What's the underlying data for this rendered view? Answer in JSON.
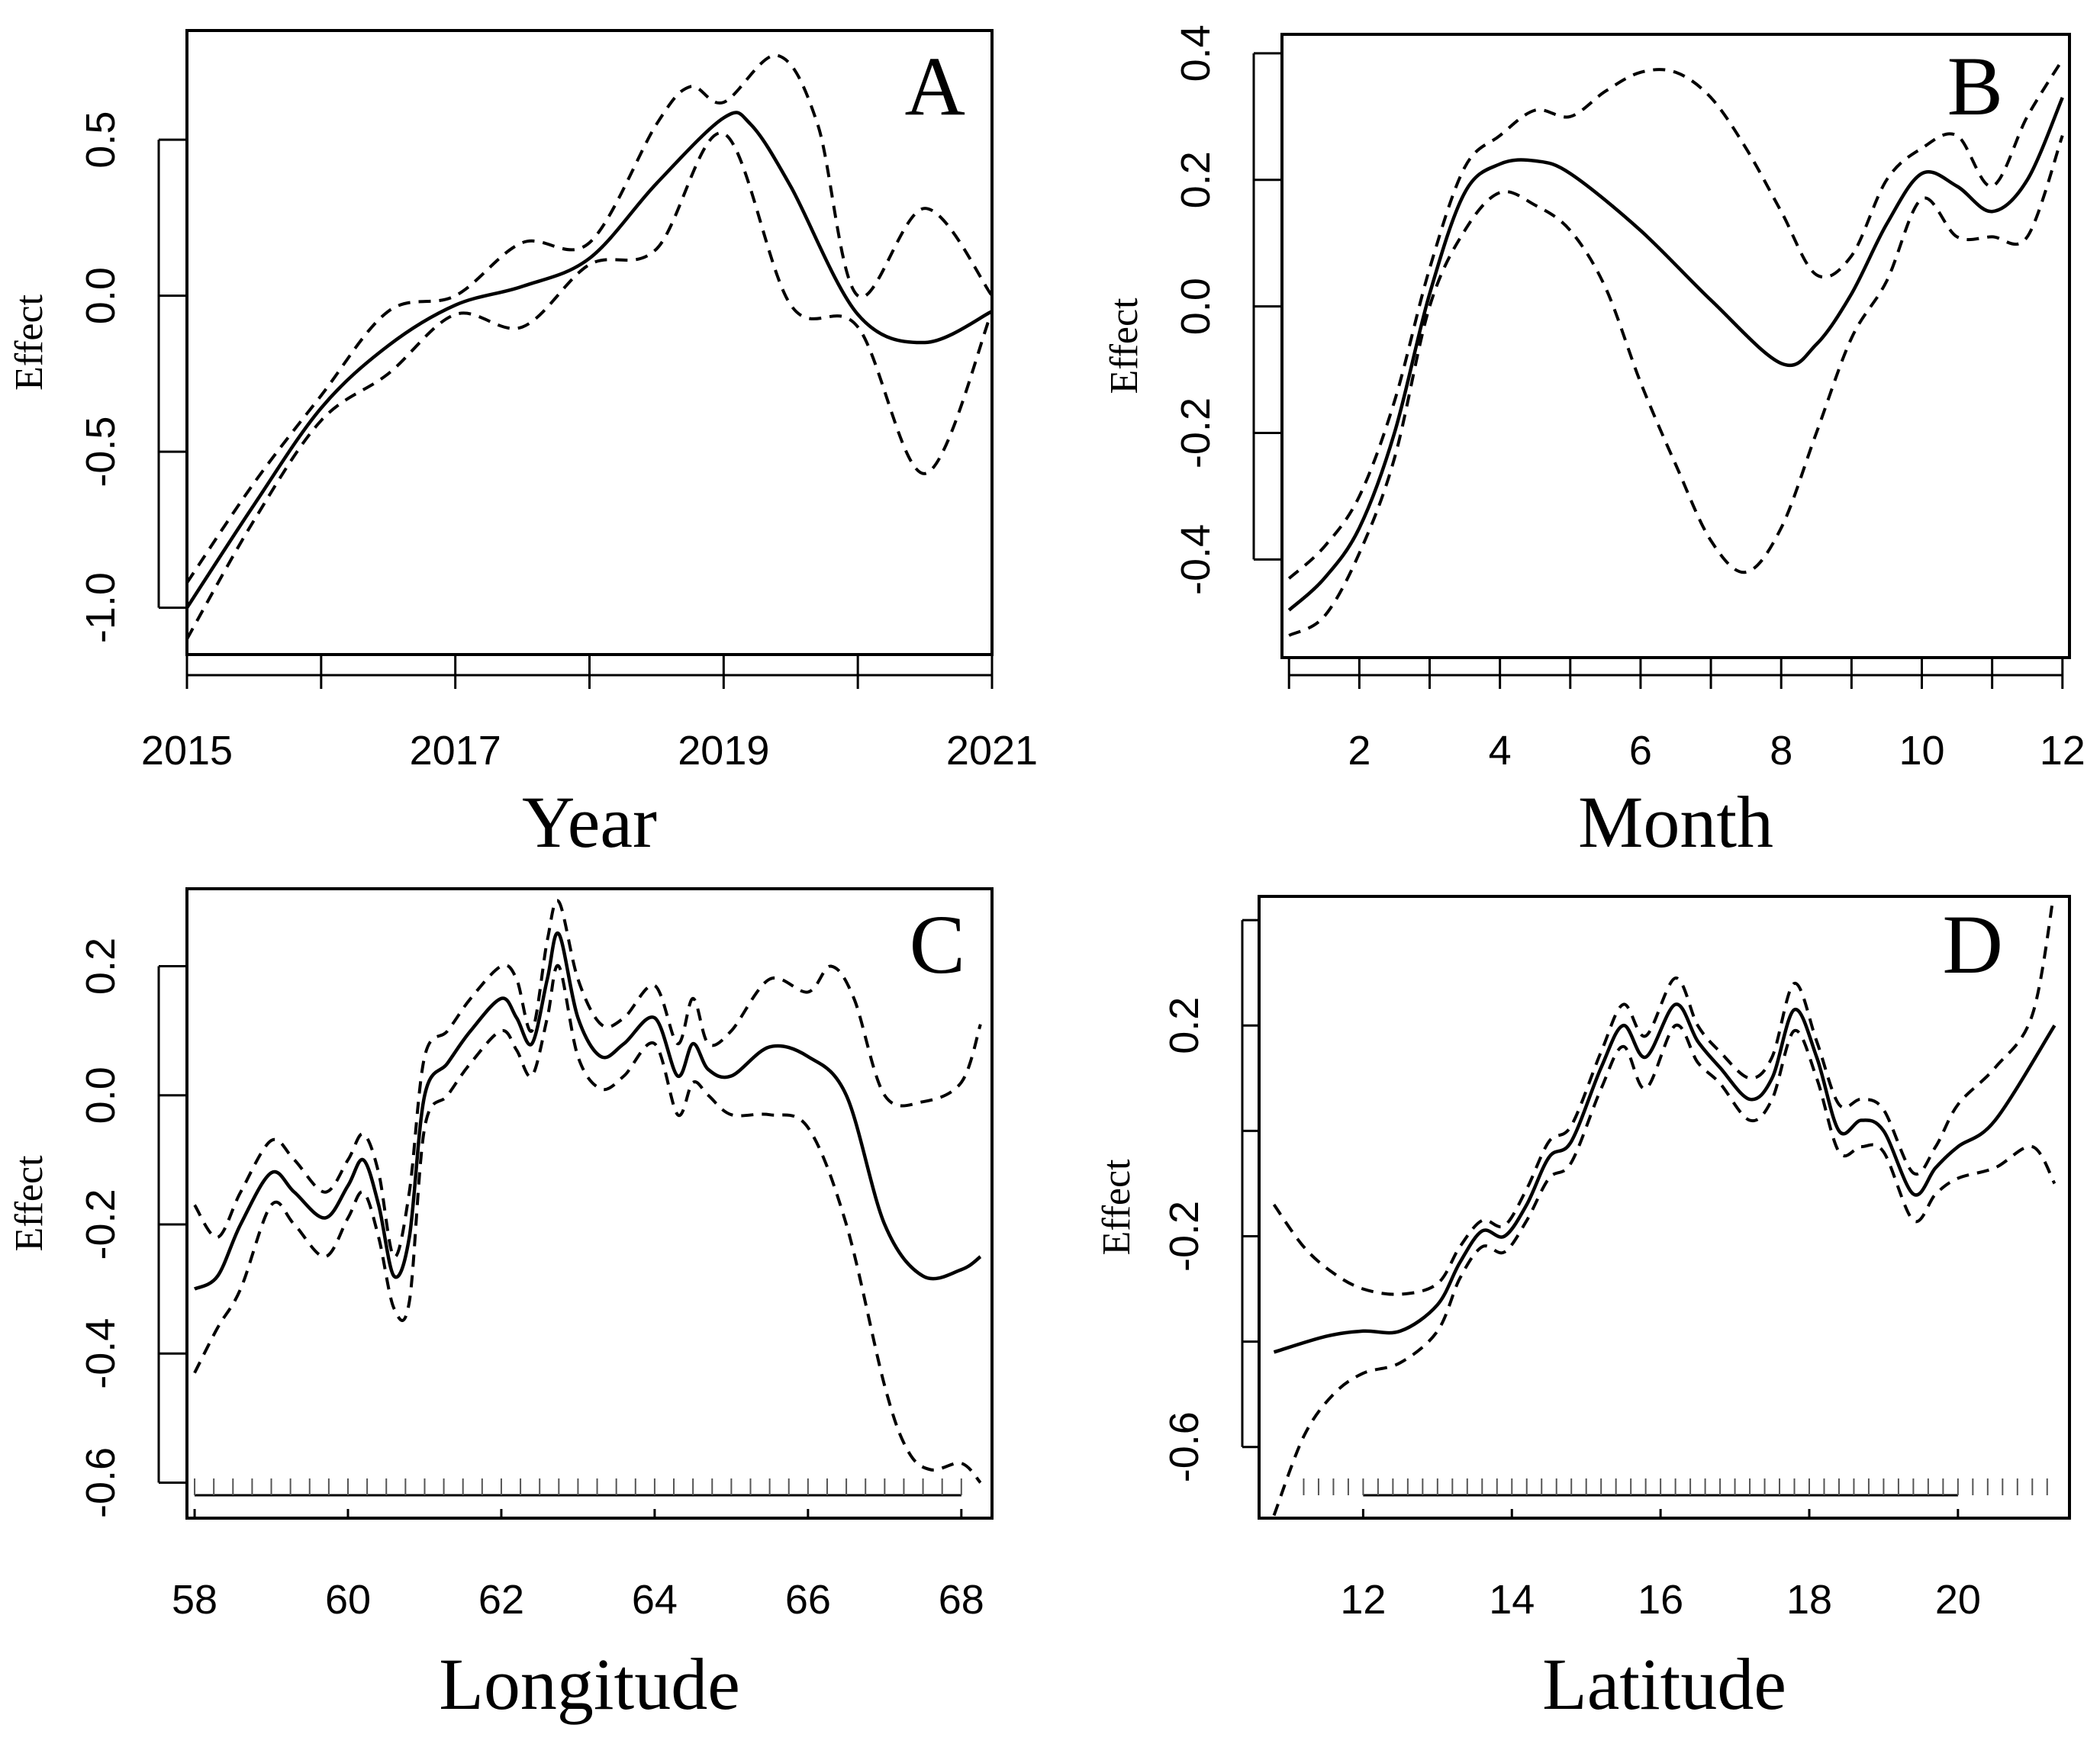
{
  "chart_data": [
    {
      "type": "line",
      "panel_label": "A",
      "xlabel": "Year",
      "ylabel": "Effect",
      "xlim": [
        2015,
        2021
      ],
      "ylim": [
        -1.15,
        0.85
      ],
      "xticks": [
        2015,
        2016,
        2017,
        2018,
        2019,
        2020,
        2021
      ],
      "xtick_labels": [
        "2015",
        "",
        "2017",
        "",
        "2019",
        "",
        "2021"
      ],
      "yticks": [
        -1.0,
        -0.5,
        0.0,
        0.5
      ],
      "ytick_labels": [
        "-1.0",
        "-0.5",
        "0.0",
        "0.5"
      ],
      "rug": [],
      "series": [
        {
          "role": "fit",
          "x": [
            2015,
            2015.5,
            2016,
            2016.5,
            2017,
            2017.5,
            2018,
            2018.5,
            2019,
            2019.2,
            2019.5,
            2020,
            2020.5,
            2021
          ],
          "y": [
            -1.0,
            -0.67,
            -0.36,
            -0.16,
            -0.03,
            0.03,
            0.12,
            0.36,
            0.57,
            0.55,
            0.35,
            -0.06,
            -0.15,
            -0.05
          ]
        },
        {
          "role": "upper",
          "x": [
            2015,
            2015.5,
            2016,
            2016.5,
            2017,
            2017.5,
            2018,
            2018.5,
            2018.75,
            2019,
            2019.4,
            2019.7,
            2020,
            2020.5,
            2021
          ],
          "y": [
            -0.92,
            -0.6,
            -0.32,
            -0.05,
            0.0,
            0.17,
            0.17,
            0.55,
            0.67,
            0.62,
            0.77,
            0.55,
            0.0,
            0.28,
            0.0
          ]
        },
        {
          "role": "lower",
          "x": [
            2015,
            2015.5,
            2016,
            2016.5,
            2017,
            2017.5,
            2018,
            2018.5,
            2019,
            2019.5,
            2020,
            2020.5,
            2021
          ],
          "y": [
            -1.1,
            -0.72,
            -0.4,
            -0.25,
            -0.06,
            -0.1,
            0.1,
            0.15,
            0.52,
            -0.03,
            -0.1,
            -0.57,
            -0.05
          ]
        }
      ]
    },
    {
      "type": "line",
      "panel_label": "B",
      "xlabel": "Month",
      "ylabel": "Effect",
      "xlim": [
        0.9,
        12.1
      ],
      "ylim": [
        -0.555,
        0.43
      ],
      "xticks": [
        1,
        2,
        3,
        4,
        5,
        6,
        7,
        8,
        9,
        10,
        11,
        12
      ],
      "xtick_labels": [
        "",
        "2",
        "",
        "4",
        "",
        "6",
        "",
        "8",
        "",
        "10",
        "",
        "12"
      ],
      "yticks": [
        -0.4,
        -0.2,
        0.0,
        0.2,
        0.4
      ],
      "ytick_labels": [
        "-0.4",
        "-0.2",
        "0.0",
        "0.2",
        "0.4"
      ],
      "rug": [],
      "series": [
        {
          "role": "fit",
          "x": [
            1,
            1.5,
            2,
            2.5,
            3,
            3.5,
            4,
            4.5,
            5,
            6,
            7,
            8,
            8.5,
            9,
            9.5,
            10,
            10.5,
            11,
            11.5,
            12
          ],
          "y": [
            -0.48,
            -0.43,
            -0.35,
            -0.2,
            0.02,
            0.18,
            0.225,
            0.23,
            0.21,
            0.12,
            0.01,
            -0.09,
            -0.06,
            0.02,
            0.13,
            0.21,
            0.19,
            0.15,
            0.2,
            0.33
          ]
        },
        {
          "role": "upper",
          "x": [
            1,
            1.5,
            2,
            2.5,
            3,
            3.5,
            4,
            4.5,
            5,
            5.5,
            6,
            6.5,
            7,
            7.5,
            8,
            8.5,
            9,
            9.5,
            10,
            10.5,
            11,
            11.5,
            12
          ],
          "y": [
            -0.43,
            -0.38,
            -0.3,
            -0.15,
            0.06,
            0.22,
            0.27,
            0.31,
            0.3,
            0.34,
            0.37,
            0.37,
            0.33,
            0.25,
            0.15,
            0.05,
            0.08,
            0.2,
            0.25,
            0.27,
            0.19,
            0.3,
            0.39
          ]
        },
        {
          "role": "lower",
          "x": [
            1,
            1.5,
            2,
            2.5,
            3,
            3.5,
            4,
            4.5,
            5,
            5.5,
            6,
            6.5,
            7,
            7.5,
            8,
            8.5,
            9,
            9.5,
            10,
            10.5,
            11,
            11.5,
            12
          ],
          "y": [
            -0.52,
            -0.49,
            -0.39,
            -0.24,
            0.0,
            0.12,
            0.18,
            0.16,
            0.12,
            0.03,
            -0.12,
            -0.25,
            -0.37,
            -0.42,
            -0.35,
            -0.2,
            -0.05,
            0.04,
            0.17,
            0.11,
            0.11,
            0.11,
            0.27
          ]
        }
      ]
    },
    {
      "type": "line",
      "panel_label": "C",
      "xlabel": "Longitude",
      "ylabel": "Effect",
      "xlim": [
        57.9,
        68.4
      ],
      "ylim": [
        -0.655,
        0.32
      ],
      "xticks": [
        58,
        60,
        62,
        64,
        66,
        68
      ],
      "xtick_labels": [
        "58",
        "60",
        "62",
        "64",
        "66",
        "68"
      ],
      "yticks": [
        -0.6,
        -0.4,
        -0.2,
        0.0,
        0.2
      ],
      "ytick_labels": [
        "-0.6",
        "-0.4",
        "-0.2",
        "0.0",
        "0.2"
      ],
      "rug": [
        58,
        58.25,
        58.5,
        58.75,
        59,
        59.25,
        59.5,
        59.75,
        60,
        60.25,
        60.5,
        60.75,
        61,
        61.25,
        61.5,
        61.75,
        62,
        62.25,
        62.5,
        62.75,
        63,
        63.25,
        63.5,
        63.75,
        64,
        64.25,
        64.5,
        64.75,
        65,
        65.25,
        65.5,
        65.75,
        66,
        66.25,
        66.5,
        66.75,
        67,
        67.25,
        67.5,
        67.75,
        68
      ],
      "series": [
        {
          "role": "fit",
          "x": [
            58,
            58.3,
            58.6,
            59,
            59.3,
            59.7,
            60,
            60.2,
            60.4,
            60.6,
            60.8,
            61,
            61.3,
            61.6,
            62,
            62.2,
            62.4,
            62.6,
            62.75,
            63,
            63.3,
            63.6,
            64,
            64.3,
            64.5,
            64.7,
            65,
            65.5,
            66,
            66.5,
            67,
            67.5,
            68,
            68.25
          ],
          "y": [
            -0.3,
            -0.28,
            -0.2,
            -0.12,
            -0.15,
            -0.19,
            -0.14,
            -0.1,
            -0.17,
            -0.28,
            -0.22,
            0.0,
            0.05,
            0.1,
            0.15,
            0.12,
            0.08,
            0.18,
            0.25,
            0.12,
            0.06,
            0.08,
            0.12,
            0.03,
            0.08,
            0.04,
            0.03,
            0.075,
            0.06,
            0.0,
            -0.2,
            -0.28,
            -0.27,
            -0.25
          ]
        },
        {
          "role": "upper",
          "x": [
            58,
            58.3,
            58.6,
            59,
            59.3,
            59.7,
            60,
            60.2,
            60.4,
            60.6,
            60.8,
            61,
            61.3,
            61.6,
            62,
            62.2,
            62.4,
            62.6,
            62.75,
            63,
            63.3,
            63.6,
            64,
            64.3,
            64.5,
            64.7,
            65,
            65.5,
            66,
            66.3,
            66.6,
            67,
            67.5,
            68,
            68.25
          ],
          "y": [
            -0.17,
            -0.22,
            -0.15,
            -0.07,
            -0.1,
            -0.15,
            -0.1,
            -0.06,
            -0.12,
            -0.25,
            -0.15,
            0.06,
            0.1,
            0.15,
            0.2,
            0.18,
            0.1,
            0.24,
            0.3,
            0.18,
            0.11,
            0.12,
            0.17,
            0.08,
            0.15,
            0.08,
            0.1,
            0.18,
            0.16,
            0.2,
            0.15,
            0.0,
            -0.01,
            0.02,
            0.11
          ]
        },
        {
          "role": "lower",
          "x": [
            58,
            58.3,
            58.6,
            59,
            59.3,
            59.7,
            60,
            60.2,
            60.4,
            60.6,
            60.8,
            61,
            61.3,
            61.6,
            62,
            62.2,
            62.4,
            62.6,
            62.75,
            63,
            63.3,
            63.6,
            64,
            64.3,
            64.5,
            64.7,
            65,
            65.5,
            66,
            66.5,
            67,
            67.3,
            67.6,
            68,
            68.25
          ],
          "y": [
            -0.43,
            -0.36,
            -0.3,
            -0.17,
            -0.2,
            -0.25,
            -0.19,
            -0.15,
            -0.22,
            -0.33,
            -0.32,
            -0.05,
            0.0,
            0.05,
            0.1,
            0.07,
            0.03,
            0.12,
            0.2,
            0.06,
            0.01,
            0.03,
            0.08,
            -0.03,
            0.02,
            0.0,
            -0.03,
            -0.03,
            -0.05,
            -0.2,
            -0.45,
            -0.55,
            -0.58,
            -0.57,
            -0.6
          ]
        }
      ]
    },
    {
      "type": "line",
      "panel_label": "D",
      "xlabel": "Latitude",
      "ylabel": "Effect",
      "xlim": [
        10.6,
        21.5
      ],
      "ylim": [
        -0.735,
        0.445
      ],
      "xticks": [
        12,
        14,
        16,
        18,
        20
      ],
      "xtick_labels": [
        "12",
        "14",
        "16",
        "18",
        "20"
      ],
      "yticks": [
        -0.6,
        -0.4,
        -0.2,
        0.0,
        0.2,
        0.4
      ],
      "ytick_labels": [
        "-0.6",
        "",
        "-0.2",
        "",
        "0.2",
        ""
      ],
      "rug": [
        11.2,
        11.4,
        11.6,
        11.8,
        12,
        12.2,
        12.4,
        12.6,
        12.8,
        13,
        13.2,
        13.4,
        13.6,
        13.8,
        14,
        14.2,
        14.4,
        14.6,
        14.8,
        15,
        15.2,
        15.4,
        15.6,
        15.8,
        16,
        16.2,
        16.4,
        16.6,
        16.8,
        17,
        17.2,
        17.4,
        17.6,
        17.8,
        18,
        18.2,
        18.4,
        18.6,
        18.8,
        19,
        19.2,
        19.4,
        19.6,
        19.8,
        20,
        20.2,
        20.4,
        20.6,
        20.8,
        21,
        21.2
      ],
      "series": [
        {
          "role": "fit",
          "x": [
            10.8,
            11.5,
            12,
            12.5,
            13,
            13.3,
            13.6,
            13.9,
            14.2,
            14.5,
            14.8,
            15.2,
            15.5,
            15.8,
            16.2,
            16.5,
            16.8,
            17.2,
            17.5,
            17.8,
            18.1,
            18.4,
            18.7,
            19,
            19.4,
            19.7,
            20,
            20.5,
            21.3
          ],
          "y": [
            -0.42,
            -0.39,
            -0.38,
            -0.38,
            -0.33,
            -0.25,
            -0.19,
            -0.2,
            -0.14,
            -0.05,
            -0.02,
            0.12,
            0.2,
            0.14,
            0.24,
            0.17,
            0.12,
            0.06,
            0.1,
            0.23,
            0.14,
            0.0,
            0.02,
            0.0,
            -0.12,
            -0.07,
            -0.03,
            0.02,
            0.2
          ]
        },
        {
          "role": "upper",
          "x": [
            10.8,
            11.2,
            11.6,
            12,
            12.5,
            13,
            13.3,
            13.6,
            13.9,
            14.2,
            14.5,
            14.8,
            15.2,
            15.5,
            15.8,
            16.2,
            16.5,
            16.8,
            17.2,
            17.5,
            17.8,
            18.1,
            18.4,
            18.7,
            19,
            19.4,
            19.7,
            20,
            20.5,
            21,
            21.3
          ],
          "y": [
            -0.14,
            -0.22,
            -0.27,
            -0.3,
            -0.31,
            -0.29,
            -0.22,
            -0.17,
            -0.18,
            -0.11,
            -0.02,
            0.01,
            0.15,
            0.24,
            0.18,
            0.29,
            0.2,
            0.15,
            0.1,
            0.14,
            0.28,
            0.17,
            0.05,
            0.06,
            0.04,
            -0.08,
            -0.03,
            0.05,
            0.12,
            0.22,
            0.46
          ]
        },
        {
          "role": "lower",
          "x": [
            10.8,
            11.2,
            11.6,
            12,
            12.5,
            13,
            13.3,
            13.6,
            13.9,
            14.2,
            14.5,
            14.8,
            15.2,
            15.5,
            15.8,
            16.2,
            16.5,
            16.8,
            17.2,
            17.5,
            17.8,
            18.1,
            18.4,
            18.7,
            19,
            19.4,
            19.7,
            20,
            20.5,
            21,
            21.3
          ],
          "y": [
            -0.73,
            -0.58,
            -0.5,
            -0.46,
            -0.44,
            -0.38,
            -0.28,
            -0.22,
            -0.23,
            -0.17,
            -0.09,
            -0.06,
            0.08,
            0.16,
            0.08,
            0.2,
            0.13,
            0.09,
            0.02,
            0.06,
            0.19,
            0.1,
            -0.04,
            -0.03,
            -0.04,
            -0.17,
            -0.12,
            -0.09,
            -0.07,
            -0.03,
            -0.1
          ]
        }
      ]
    }
  ]
}
